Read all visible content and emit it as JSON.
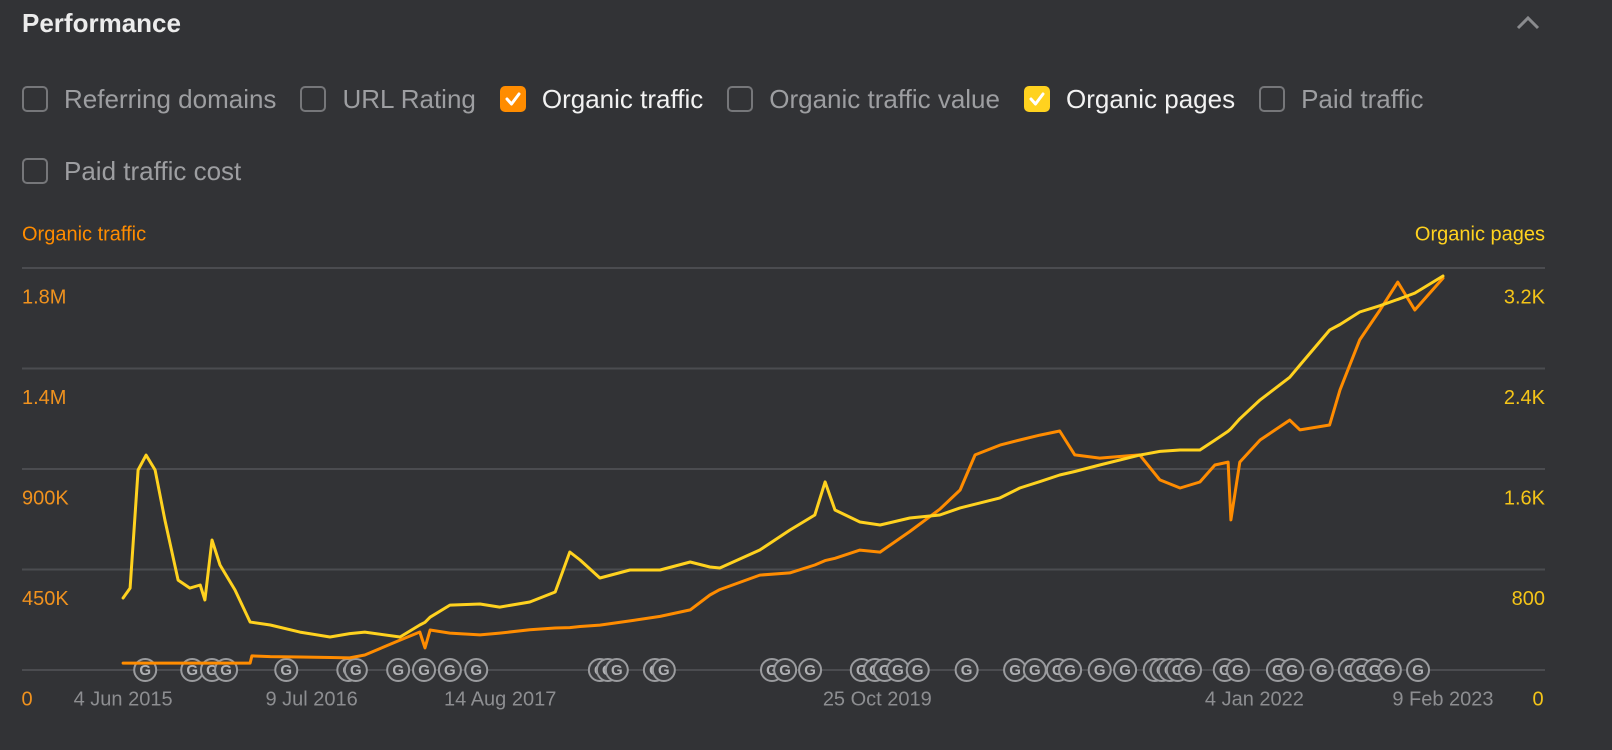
{
  "header": {
    "title": "Performance"
  },
  "toggles": [
    {
      "label": "Referring domains",
      "checked": false
    },
    {
      "label": "URL Rating",
      "checked": false
    },
    {
      "label": "Organic traffic",
      "checked": true,
      "color": "#ff8c00"
    },
    {
      "label": "Organic traffic value",
      "checked": false
    },
    {
      "label": "Organic pages",
      "checked": true,
      "color": "#ffd21f"
    },
    {
      "label": "Paid traffic",
      "checked": false
    },
    {
      "label": "Paid traffic cost",
      "checked": false
    }
  ],
  "chart_data": {
    "type": "line",
    "x": [
      "2015-06-04",
      "2015-06-19",
      "2015-07-06",
      "2015-07-23",
      "2015-08-11",
      "2015-09-01",
      "2015-09-29",
      "2015-10-24",
      "2015-11-15",
      "2015-11-25",
      "2015-12-10",
      "2015-12-27",
      "2016-01-28",
      "2016-02-29",
      "2016-03-04",
      "2016-04-12",
      "2016-06-14",
      "2016-08-17",
      "2016-09-28",
      "2016-10-30",
      "2017-01-13",
      "2017-02-24",
      "2017-03-07",
      "2017-03-18",
      "2017-04-29",
      "2017-07-02",
      "2017-08-13",
      "2017-10-16",
      "2017-12-09",
      "2018-01-09",
      "2018-01-31",
      "2018-03-14",
      "2018-05-17",
      "2018-07-20",
      "2018-09-22",
      "2018-11-03",
      "2018-11-24",
      "2019-02-17",
      "2019-04-22",
      "2019-06-14",
      "2019-07-06",
      "2019-07-27",
      "2019-09-18",
      "2019-10-31",
      "2020-01-02",
      "2020-03-06",
      "2020-04-18",
      "2020-05-20",
      "2020-07-12",
      "2020-08-23",
      "2020-10-05",
      "2020-11-16",
      "2020-12-18",
      "2021-02-09",
      "2021-05-05",
      "2021-06-17",
      "2021-07-30",
      "2021-09-10",
      "2021-10-12",
      "2021-11-09",
      "2021-11-15",
      "2021-12-04",
      "2022-01-16",
      "2022-03-20",
      "2022-04-11",
      "2022-06-13",
      "2022-07-05",
      "2022-08-16",
      "2022-09-28",
      "2022-11-05",
      "2022-12-11",
      "2023-02-09"
    ],
    "xlim": [
      "2014-11-01",
      "2023-09-14"
    ],
    "xticks": [
      {
        "value": "2015-06-04",
        "label": "4 Jun 2015"
      },
      {
        "value": "2016-07-09",
        "label": "9 Jul 2016"
      },
      {
        "value": "2017-08-14",
        "label": "14 Aug 2017"
      },
      {
        "value": "2019-10-25",
        "label": "25 Oct 2019"
      },
      {
        "value": "2022-01-04",
        "label": "4 Jan 2022"
      },
      {
        "value": "2023-02-09",
        "label": "9 Feb 2023"
      }
    ],
    "ylim": [
      0,
      1800000
    ],
    "yticks": [
      0,
      {
        "value": 450000,
        "label": "450K"
      },
      {
        "value": 900000,
        "label": "900K"
      },
      {
        "value": 1350000,
        "label": "1.4M"
      },
      {
        "value": 1800000,
        "label": "1.8M"
      }
    ],
    "y2lim": [
      0,
      3200
    ],
    "y2ticks": [
      0,
      800,
      {
        "value": 1600,
        "label": "1.6K"
      },
      {
        "value": 2400,
        "label": "2.4K"
      },
      {
        "value": 3200,
        "label": "3.2K"
      }
    ],
    "grid": true,
    "series": [
      {
        "name": "Organic traffic",
        "color": "#ff8c00",
        "values": [
          31000,
          31000,
          31000,
          31000,
          31000,
          31000,
          31000,
          31000,
          31000,
          31000,
          31000,
          31000,
          31000,
          31000,
          63000,
          60000,
          58000,
          56000,
          54000,
          67000,
          134000,
          170000,
          99000,
          179000,
          165000,
          157000,
          165000,
          180000,
          188000,
          190000,
          195000,
          201000,
          220000,
          240000,
          269000,
          336000,
          360000,
          425000,
          435000,
          470000,
          490000,
          500000,
          537000,
          528000,
          620000,
          720000,
          806000,
          963000,
          1007000,
          1030000,
          1052000,
          1070000,
          963000,
          949000,
          963000,
          851000,
          815000,
          842000,
          918000,
          931000,
          672000,
          931000,
          1030000,
          1119000,
          1075000,
          1097000,
          1254000,
          1478000,
          1612000,
          1737000,
          1612000,
          1755000
        ]
      },
      {
        "name": "Organic pages",
        "color": "#ffd21f",
        "axis": "y2",
        "values": [
          573,
          652,
          1592,
          1711,
          1592,
          1194,
          716,
          652,
          677,
          557,
          1035,
          836,
          637,
          382,
          380,
          358,
          302,
          263,
          290,
          302,
          263,
          358,
          380,
          420,
          517,
          525,
          501,
          541,
          621,
          939,
          876,
          732,
          796,
          796,
          860,
          820,
          812,
          955,
          1114,
          1234,
          1497,
          1274,
          1178,
          1154,
          1210,
          1234,
          1290,
          1320,
          1370,
          1449,
          1500,
          1552,
          1580,
          1632,
          1711,
          1740,
          1751,
          1751,
          1830,
          1900,
          1920,
          2000,
          2150,
          2330,
          2428,
          2706,
          2750,
          2850,
          2900,
          2950,
          3000,
          3136
        ]
      }
    ],
    "annotations": {
      "label": "G",
      "x": [
        "2015-07-21",
        "2015-10-29",
        "2015-12-10",
        "2016-01-09",
        "2016-05-16",
        "2016-09-25",
        "2016-10-11",
        "2017-01-09",
        "2017-03-05",
        "2017-04-29",
        "2017-06-24",
        "2018-03-14",
        "2018-03-31",
        "2018-04-19",
        "2018-07-09",
        "2018-07-28",
        "2019-03-15",
        "2019-04-12",
        "2019-06-04",
        "2019-09-22",
        "2019-10-20",
        "2019-11-10",
        "2019-12-08",
        "2020-01-19",
        "2020-05-02",
        "2020-08-13",
        "2020-09-24",
        "2020-11-12",
        "2020-12-08",
        "2021-02-09",
        "2021-04-04",
        "2021-06-06",
        "2021-06-21",
        "2021-07-08",
        "2021-07-25",
        "2021-08-20",
        "2021-11-02",
        "2021-11-30",
        "2022-02-23",
        "2022-03-25",
        "2022-05-27",
        "2022-07-26",
        "2022-08-20",
        "2022-09-17",
        "2022-10-19",
        "2022-12-18"
      ]
    }
  }
}
